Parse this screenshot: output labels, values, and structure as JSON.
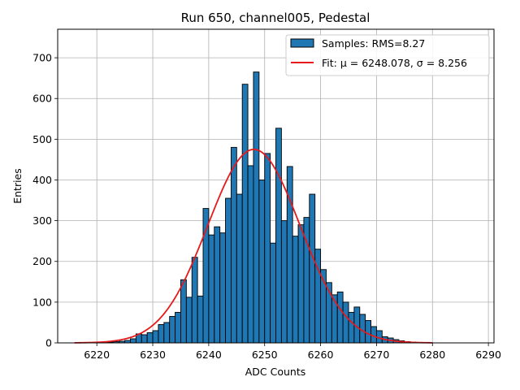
{
  "chart_data": {
    "type": "bar",
    "title": "Run 650, channel005, Pedestal",
    "xlabel": "ADC Counts",
    "ylabel": "Entries",
    "xlim": [
      6213,
      6291
    ],
    "ylim": [
      0,
      770
    ],
    "xticks": [
      6220,
      6230,
      6240,
      6250,
      6260,
      6270,
      6280,
      6290
    ],
    "yticks": [
      0,
      100,
      200,
      300,
      400,
      500,
      600,
      700
    ],
    "grid": true,
    "legend_position": "top-right",
    "bin_width": 1,
    "histogram": {
      "name": "Samples: RMS=8.27",
      "color": "#1f77b4",
      "edgecolor": "#000000",
      "bin_left_edges": [
        6219,
        6220,
        6221,
        6222,
        6223,
        6224,
        6225,
        6226,
        6227,
        6228,
        6229,
        6230,
        6231,
        6232,
        6233,
        6234,
        6235,
        6236,
        6237,
        6238,
        6239,
        6240,
        6241,
        6242,
        6243,
        6244,
        6245,
        6246,
        6247,
        6248,
        6249,
        6250,
        6251,
        6252,
        6253,
        6254,
        6255,
        6256,
        6257,
        6258,
        6259,
        6260,
        6261,
        6262,
        6263,
        6264,
        6265,
        6266,
        6267,
        6268,
        6269,
        6270,
        6271,
        6272,
        6273,
        6274,
        6275,
        6276,
        6277
      ],
      "counts": [
        1,
        1,
        1,
        2,
        3,
        4,
        6,
        10,
        22,
        20,
        25,
        30,
        45,
        50,
        65,
        75,
        155,
        112,
        210,
        115,
        330,
        265,
        285,
        270,
        355,
        480,
        365,
        635,
        435,
        665,
        400,
        465,
        245,
        527,
        300,
        433,
        262,
        290,
        308,
        365,
        230,
        180,
        148,
        118,
        125,
        100,
        75,
        88,
        70,
        55,
        40,
        30,
        15,
        12,
        8,
        5,
        3,
        2,
        1
      ]
    },
    "fit": {
      "name": "Fit: μ = 6248.078, σ = 8.256",
      "color": "#e41a1c",
      "mu": 6248.078,
      "sigma": 8.256,
      "amplitude": 475,
      "x_range": [
        6216,
        6280
      ]
    }
  }
}
